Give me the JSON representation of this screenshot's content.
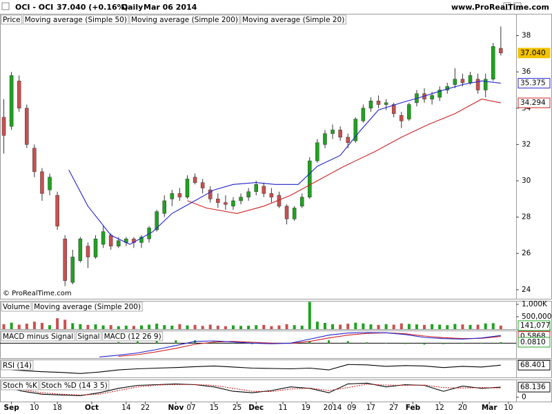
{
  "header": {
    "symbol": "OCI - OCI",
    "change": "37.040 (+0.16%)",
    "period": "Daily",
    "date": "Mar 06 2014",
    "site": "www.ProRealTime.com"
  },
  "chart_data": [
    {
      "type": "candlestick",
      "name": "Price",
      "up_color": "#1fa31f",
      "down_color": "#c9504f",
      "copyright": "© ProRealTime.com",
      "xlim": [
        -1,
        134
      ],
      "xticks": [
        {
          "value": 2,
          "label": "Sep"
        },
        {
          "value": 8,
          "label": "10"
        },
        {
          "value": 14,
          "label": "18"
        },
        {
          "value": 23,
          "label": "Oct"
        },
        {
          "value": 32,
          "label": "14"
        },
        {
          "value": 37,
          "label": "22"
        },
        {
          "value": 45,
          "label": "Nov"
        },
        {
          "value": 49,
          "label": "07"
        },
        {
          "value": 55,
          "label": "15"
        },
        {
          "value": 61,
          "label": "25"
        },
        {
          "value": 66,
          "label": "Dec"
        },
        {
          "value": 73,
          "label": "11"
        },
        {
          "value": 79,
          "label": "19"
        },
        {
          "value": 86,
          "label": "2014"
        },
        {
          "value": 91,
          "label": "09"
        },
        {
          "value": 96,
          "label": "17"
        },
        {
          "value": 102,
          "label": "27"
        },
        {
          "value": 107,
          "label": "Feb"
        },
        {
          "value": 114,
          "label": "12"
        },
        {
          "value": 120,
          "label": "20"
        },
        {
          "value": 127,
          "label": "Mar"
        },
        {
          "value": 132,
          "label": "10"
        }
      ],
      "ylim": [
        23.5,
        39.2
      ],
      "yticks": [
        24,
        26,
        28,
        30,
        32,
        34,
        36,
        38
      ],
      "x": [
        0,
        2,
        4,
        6,
        8,
        10,
        12,
        14,
        16,
        18,
        20,
        22,
        24,
        26,
        28,
        30,
        32,
        34,
        36,
        38,
        40,
        42,
        44,
        46,
        48,
        50,
        52,
        54,
        56,
        58,
        60,
        62,
        64,
        66,
        68,
        70,
        72,
        74,
        76,
        78,
        80,
        82,
        84,
        86,
        88,
        90,
        92,
        94,
        96,
        98,
        100,
        102,
        104,
        106,
        108,
        110,
        112,
        114,
        116,
        118,
        120,
        122,
        124,
        126,
        128,
        130
      ],
      "ohlc": [
        [
          33.5,
          34.5,
          31.5,
          32.5
        ],
        [
          33.0,
          36.0,
          32.8,
          35.8
        ],
        [
          35.5,
          35.8,
          33.8,
          34.0
        ],
        [
          34.0,
          34.2,
          31.8,
          32.0
        ],
        [
          31.8,
          32.0,
          30.2,
          30.5
        ],
        [
          30.5,
          30.7,
          28.9,
          29.3
        ],
        [
          29.5,
          30.4,
          29.2,
          30.2
        ],
        [
          29.2,
          29.4,
          27.3,
          27.5
        ],
        [
          26.8,
          27.0,
          24.2,
          24.5
        ],
        [
          24.4,
          26.2,
          24.3,
          25.8
        ],
        [
          25.6,
          26.9,
          25.5,
          26.8
        ],
        [
          26.4,
          26.6,
          25.2,
          25.8
        ],
        [
          25.8,
          27.0,
          25.7,
          26.8
        ],
        [
          26.5,
          27.5,
          26.3,
          27.2
        ],
        [
          27.0,
          27.1,
          26.2,
          26.4
        ],
        [
          26.4,
          26.9,
          26.3,
          26.7
        ],
        [
          26.6,
          26.9,
          26.4,
          26.8
        ],
        [
          26.8,
          26.9,
          26.3,
          26.6
        ],
        [
          26.6,
          27.0,
          26.3,
          26.9
        ],
        [
          26.8,
          27.5,
          26.6,
          27.4
        ],
        [
          27.3,
          28.4,
          27.2,
          28.3
        ],
        [
          28.2,
          29.2,
          28.0,
          28.9
        ],
        [
          29.0,
          29.5,
          28.6,
          29.3
        ],
        [
          29.3,
          29.6,
          28.9,
          29.1
        ],
        [
          29.1,
          30.3,
          29.0,
          30.1
        ],
        [
          30.2,
          30.4,
          29.8,
          29.9
        ],
        [
          29.9,
          30.1,
          29.3,
          29.6
        ],
        [
          29.5,
          29.7,
          28.8,
          29.0
        ],
        [
          29.0,
          29.3,
          28.5,
          28.8
        ],
        [
          28.8,
          29.2,
          28.4,
          28.7
        ],
        [
          28.6,
          29.1,
          28.4,
          28.9
        ],
        [
          28.9,
          29.3,
          28.7,
          29.1
        ],
        [
          29.1,
          29.6,
          28.9,
          29.4
        ],
        [
          29.4,
          30.0,
          29.2,
          29.8
        ],
        [
          29.7,
          29.9,
          29.1,
          29.3
        ],
        [
          29.3,
          29.6,
          28.8,
          29.1
        ],
        [
          29.2,
          29.4,
          28.5,
          28.6
        ],
        [
          28.6,
          28.7,
          27.6,
          27.9
        ],
        [
          27.9,
          28.6,
          27.8,
          28.5
        ],
        [
          28.6,
          29.3,
          28.5,
          29.1
        ],
        [
          29.1,
          31.3,
          29.0,
          31.1
        ],
        [
          31.1,
          32.3,
          31.0,
          32.1
        ],
        [
          32.0,
          32.8,
          31.8,
          32.6
        ],
        [
          32.6,
          33.1,
          32.3,
          32.8
        ],
        [
          32.8,
          33.0,
          32.2,
          32.4
        ],
        [
          32.4,
          32.6,
          31.8,
          32.1
        ],
        [
          32.2,
          33.5,
          32.1,
          33.4
        ],
        [
          33.3,
          34.2,
          33.2,
          34.0
        ],
        [
          34.0,
          34.6,
          33.8,
          34.4
        ],
        [
          34.4,
          34.7,
          34.0,
          34.2
        ],
        [
          34.2,
          34.5,
          33.9,
          34.3
        ],
        [
          34.2,
          34.3,
          33.5,
          33.7
        ],
        [
          33.6,
          33.8,
          32.9,
          33.3
        ],
        [
          33.4,
          34.3,
          33.3,
          34.2
        ],
        [
          34.3,
          35.0,
          34.1,
          34.8
        ],
        [
          34.8,
          35.1,
          34.3,
          34.5
        ],
        [
          34.5,
          34.9,
          34.2,
          34.7
        ],
        [
          34.6,
          35.2,
          34.4,
          35.0
        ],
        [
          35.0,
          35.4,
          34.8,
          35.2
        ],
        [
          35.3,
          36.2,
          35.1,
          35.6
        ],
        [
          35.6,
          35.9,
          35.2,
          35.4
        ],
        [
          35.4,
          36.0,
          35.3,
          35.8
        ],
        [
          35.6,
          35.9,
          34.8,
          35.0
        ],
        [
          35.0,
          35.9,
          34.6,
          35.6
        ],
        [
          35.6,
          37.6,
          35.5,
          37.4
        ],
        [
          37.3,
          38.5,
          36.9,
          37.04
        ]
      ],
      "series": [
        {
          "name": "Moving average (Simple 50)",
          "color": "#cc2222",
          "x": [
            48,
            53,
            61,
            68,
            75,
            82,
            89,
            97,
            104,
            111,
            118,
            125,
            130
          ],
          "values": [
            28.9,
            28.5,
            28.2,
            28.6,
            29.2,
            30.0,
            30.8,
            31.6,
            32.4,
            33.1,
            33.7,
            34.5,
            34.294
          ]
        },
        {
          "name": "Moving average (Simple 200)",
          "color": "#229922",
          "x": [],
          "values": []
        },
        {
          "name": "Moving average (Simple 20)",
          "color": "#2020cc",
          "x": [
            17,
            22,
            28,
            33,
            39,
            44,
            50,
            55,
            60,
            66,
            71,
            77,
            82,
            88,
            93,
            98,
            104,
            109,
            115,
            120,
            125,
            130
          ],
          "values": [
            30.6,
            28.6,
            27.0,
            26.5,
            27.2,
            28.2,
            28.9,
            29.5,
            29.8,
            29.9,
            29.8,
            29.8,
            30.8,
            31.4,
            32.7,
            33.9,
            34.3,
            34.6,
            35.0,
            35.3,
            35.5,
            35.375
          ]
        }
      ],
      "readouts": [
        {
          "value": 37.04,
          "label": "37.040",
          "color": "#f2c200"
        },
        {
          "value": 35.375,
          "color": "#2020cc"
        },
        {
          "value": 34.294,
          "color": "#cc2222"
        }
      ]
    },
    {
      "type": "volume",
      "ylim": [
        0,
        1140000
      ],
      "yticks": [
        {
          "value": 1000000,
          "label": "1,000K"
        },
        {
          "value": 500000,
          "label": "500,000"
        }
      ],
      "series": [
        {
          "name": "Volume",
          "color": "#1fa31f",
          "values": [
            200000,
            260000,
            180000,
            220000,
            300000,
            250000,
            160000,
            440000,
            380000,
            240000,
            200000,
            170000,
            190000,
            150000,
            160000,
            120000,
            140000,
            130000,
            150000,
            180000,
            220000,
            160000,
            140000,
            200000,
            150000,
            170000,
            130000,
            180000,
            140000,
            120000,
            150000,
            130000,
            140000,
            160000,
            170000,
            120000,
            150000,
            200000,
            160000,
            140000,
            1100000,
            300000,
            250000,
            200000,
            180000,
            220000,
            260000,
            230000,
            190000,
            170000,
            200000,
            180000,
            230000,
            210000,
            190000,
            170000,
            200000,
            180000,
            160000,
            210000,
            190000,
            170000,
            180000,
            230000,
            240000,
            141077
          ]
        },
        {
          "name": "Moving average (Simple 200)",
          "color": "#2020cc",
          "values": []
        }
      ],
      "readouts": [
        {
          "value": 141077,
          "label": "141,077",
          "color": "#1fa31f"
        }
      ]
    },
    {
      "type": "macd",
      "ylim": [
        -1.3,
        1.1
      ],
      "series": [
        {
          "name": "MACD minus Signal",
          "color": "#1fa31f",
          "x": [
            30,
            35,
            40,
            45,
            50,
            55,
            60,
            65,
            70,
            75,
            80,
            85,
            90,
            95,
            100,
            105,
            110,
            115,
            120,
            125,
            130
          ],
          "values": [
            0.1,
            0.15,
            0.2,
            0.25,
            0.25,
            0.1,
            -0.05,
            -0.08,
            -0.05,
            0.02,
            0.2,
            0.25,
            0.18,
            0.07,
            0.0,
            -0.07,
            -0.12,
            -0.08,
            -0.05,
            0.03,
            0.081
          ]
        },
        {
          "name": "Signal",
          "color": "#cc2222",
          "x": [
            30,
            35,
            40,
            45,
            50,
            55,
            60,
            65,
            70,
            75,
            80,
            85,
            90,
            95,
            100,
            105,
            110,
            115,
            120,
            125,
            130
          ],
          "values": [
            -1.15,
            -1.0,
            -0.75,
            -0.45,
            -0.1,
            0.1,
            0.15,
            0.08,
            0.0,
            -0.02,
            0.15,
            0.45,
            0.7,
            0.85,
            0.9,
            0.82,
            0.62,
            0.48,
            0.4,
            0.42,
            0.5868
          ]
        },
        {
          "name": "MACD (12 26 9)",
          "color": "#2020cc",
          "x": [
            25,
            30,
            35,
            40,
            45,
            50,
            55,
            60,
            65,
            70,
            75,
            80,
            85,
            90,
            95,
            100,
            105,
            110,
            115,
            120,
            125,
            130
          ],
          "values": [
            -1.2,
            -1.05,
            -0.85,
            -0.55,
            -0.2,
            0.15,
            0.2,
            0.1,
            0.0,
            -0.05,
            0.0,
            0.35,
            0.7,
            0.88,
            0.92,
            0.9,
            0.75,
            0.5,
            0.4,
            0.35,
            0.45,
            0.6678
          ]
        }
      ],
      "readouts": [
        {
          "value": 0.5868,
          "color": "#cc2222"
        },
        {
          "value": 0.081,
          "label": "0.0810",
          "color": "#1fa31f"
        }
      ]
    },
    {
      "type": "line",
      "ylim": [
        0,
        100
      ],
      "series": [
        {
          "name": "RSI (14)",
          "color": "#000000",
          "x": [
            0,
            5,
            10,
            15,
            20,
            25,
            30,
            35,
            40,
            45,
            50,
            55,
            60,
            65,
            70,
            75,
            80,
            85,
            90,
            95,
            100,
            105,
            110,
            115,
            120,
            125,
            130
          ],
          "values": [
            45,
            38,
            32,
            28,
            22,
            30,
            42,
            48,
            52,
            55,
            60,
            64,
            58,
            52,
            50,
            48,
            52,
            42,
            72,
            70,
            62,
            66,
            64,
            55,
            62,
            58,
            68.401
          ]
        }
      ],
      "readouts": [
        {
          "value": 68.401,
          "color": "#000000"
        }
      ]
    },
    {
      "type": "line",
      "ylim": [
        -30,
        120
      ],
      "yticks": [
        0
      ],
      "series": [
        {
          "name": "Stoch %K",
          "color": "#000000",
          "x": [
            0,
            5,
            10,
            15,
            20,
            25,
            30,
            35,
            40,
            45,
            50,
            55,
            60,
            65,
            70,
            75,
            80,
            85,
            90,
            95,
            100,
            105,
            110,
            115,
            120,
            125,
            130
          ],
          "values": [
            70,
            40,
            20,
            15,
            10,
            30,
            60,
            80,
            85,
            90,
            85,
            70,
            40,
            30,
            45,
            70,
            60,
            30,
            90,
            95,
            70,
            85,
            80,
            40,
            75,
            60,
            68.136
          ]
        },
        {
          "name": "Stoch %D (14 3 5)",
          "color": "#cc2222",
          "x": [
            0,
            5,
            10,
            15,
            20,
            25,
            30,
            35,
            40,
            45,
            50,
            55,
            60,
            65,
            70,
            75,
            80,
            85,
            90,
            95,
            100,
            105,
            110,
            115,
            120,
            125,
            130
          ],
          "values": [
            60,
            50,
            30,
            20,
            15,
            20,
            45,
            70,
            82,
            86,
            86,
            80,
            60,
            40,
            38,
            55,
            62,
            45,
            65,
            88,
            82,
            80,
            82,
            65,
            62,
            65,
            62
          ]
        }
      ],
      "readouts": [
        {
          "value": 68.136,
          "color": "#000000"
        }
      ]
    }
  ]
}
